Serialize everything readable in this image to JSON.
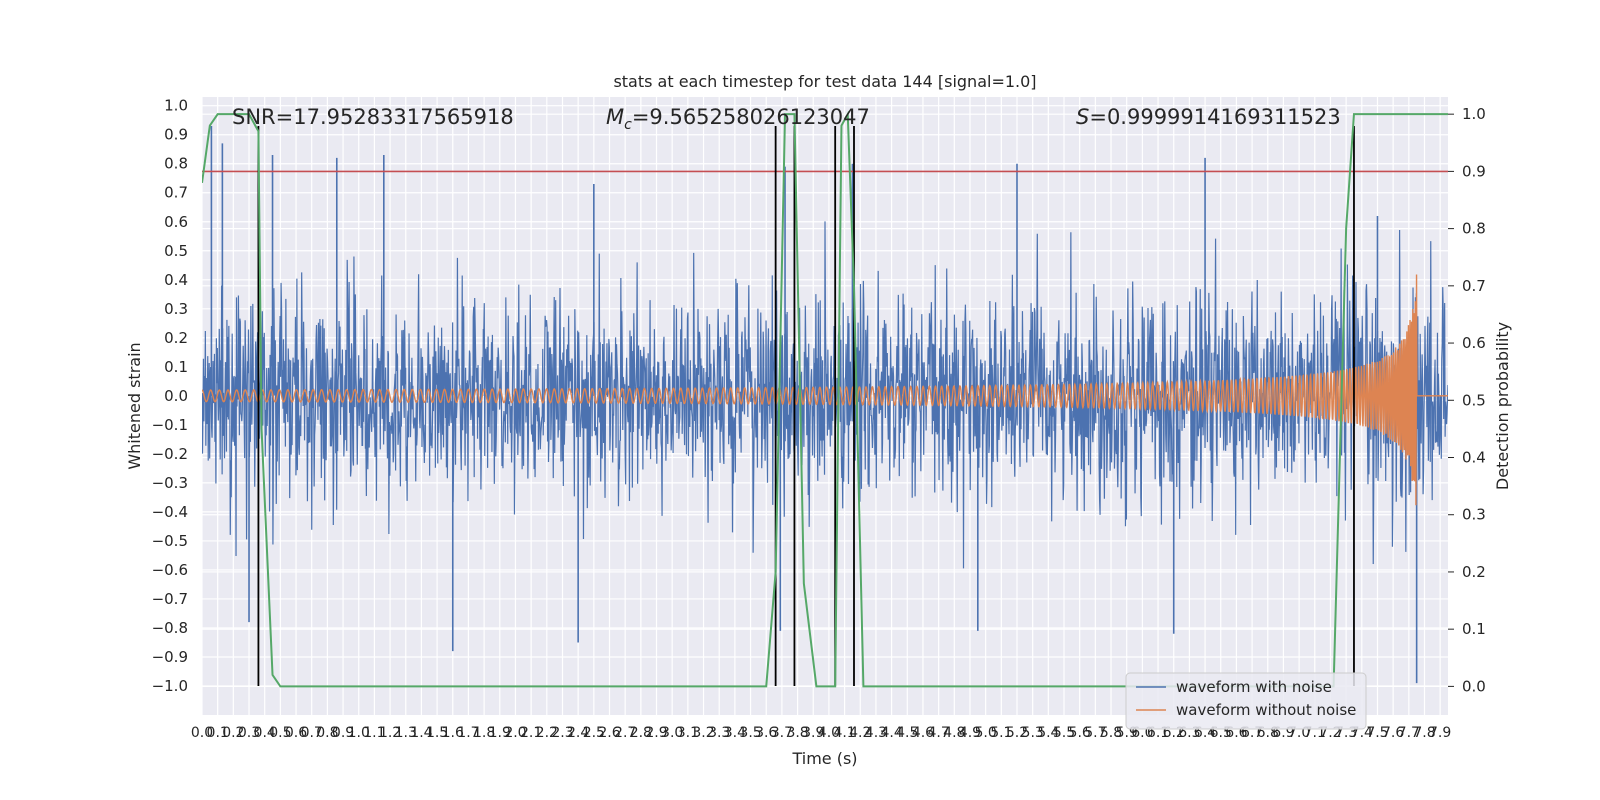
{
  "chart_data": {
    "type": "line",
    "title": "stats at each timestep for test data 144 [signal=1.0]",
    "xlabel": "Time (s)",
    "ylabel": "Whitened strain",
    "ylabel_right": "Detection probability",
    "xlim": [
      0,
      7.95
    ],
    "ylim": [
      -1.1,
      1.03
    ],
    "ylim_right": [
      -0.05,
      1.03
    ],
    "x_ticks": [
      0.0,
      0.1,
      0.2,
      0.3,
      0.4,
      0.5,
      0.6,
      0.7,
      0.8,
      0.9,
      1.0,
      1.1,
      1.2,
      1.3,
      1.4,
      1.5,
      1.6,
      1.7,
      1.8,
      1.9,
      2.0,
      2.1,
      2.2,
      2.3,
      2.4,
      2.5,
      2.6,
      2.7,
      2.8,
      2.9,
      3.0,
      3.1,
      3.2,
      3.3,
      3.4,
      3.5,
      3.6,
      3.7,
      3.8,
      3.9,
      4.0,
      4.1,
      4.2,
      4.3,
      4.4,
      4.5,
      4.6,
      4.7,
      4.8,
      4.9,
      5.0,
      5.1,
      5.2,
      5.3,
      5.4,
      5.5,
      5.6,
      5.7,
      5.8,
      5.9,
      6.0,
      6.1,
      6.2,
      6.3,
      6.4,
      6.5,
      6.6,
      6.7,
      6.8,
      6.9,
      7.0,
      7.1,
      7.2,
      7.3,
      7.4,
      7.5,
      7.6,
      7.7,
      7.8,
      7.9
    ],
    "y_ticks": [
      1.0,
      0.9,
      0.8,
      0.7,
      0.6,
      0.5,
      0.4,
      0.3,
      0.2,
      0.1,
      0.0,
      -0.1,
      -0.2,
      -0.3,
      -0.4,
      -0.5,
      -0.6,
      -0.7,
      -0.8,
      -0.9,
      -1.0
    ],
    "y_tick_labels": [
      "1.0",
      "0.9",
      "0.8",
      "0.7",
      "0.6",
      "0.5",
      "0.4",
      "0.3",
      "0.2",
      "0.1",
      "0.0",
      "−0.1",
      "−0.2",
      "−0.3",
      "−0.4",
      "−0.5",
      "−0.6",
      "−0.7",
      "−0.8",
      "−0.9",
      "−1.0"
    ],
    "y_right_ticks": [
      1.0,
      0.9,
      0.8,
      0.7,
      0.6,
      0.5,
      0.4,
      0.3,
      0.2,
      0.1,
      0.0
    ],
    "y_right_tick_labels": [
      "1.0",
      "0.9",
      "0.8",
      "0.7",
      "0.6",
      "0.5",
      "0.4",
      "0.3",
      "0.2",
      "0.1",
      "0.0"
    ],
    "grid": true,
    "legend_position": "lower-right",
    "annotations": {
      "snr": "SNR=17.95283317565918",
      "mc_symbol": "M",
      "mc_subscript": "c",
      "mc_value": "=9.565258026123047",
      "s_symbol": "S",
      "s_value": "=0.9999914169311523"
    },
    "series": [
      {
        "name": "waveform with noise",
        "color": "#4c72b0",
        "description_of_shape": "dense gaussian-like noise, amplitude roughly ±0.45 with spikes up to ±0.93",
        "noise_amplitude": 0.17,
        "spike_examples": [
          [
            0.06,
            0.93
          ],
          [
            0.13,
            0.87
          ],
          [
            0.3,
            -0.78
          ],
          [
            0.45,
            0.83
          ],
          [
            0.86,
            0.82
          ],
          [
            1.16,
            0.83
          ],
          [
            1.6,
            -0.88
          ],
          [
            2.4,
            -0.85
          ],
          [
            2.5,
            0.73
          ],
          [
            3.72,
            0.79
          ],
          [
            3.69,
            -0.81
          ],
          [
            4.15,
            0.8
          ],
          [
            4.95,
            -0.81
          ],
          [
            5.2,
            0.8
          ],
          [
            6.4,
            0.82
          ],
          [
            6.2,
            -0.82
          ],
          [
            7.75,
            -0.99
          ],
          [
            7.5,
            0.62
          ]
        ]
      },
      {
        "name": "waveform without noise",
        "color": "#dd8452",
        "description_of_shape": "chirp: small sinusoid growing in amplitude and frequency, peaking near t=7.75, then flat",
        "x_start": 0.0,
        "x_merger": 7.75,
        "amplitude_start": 0.02,
        "amplitude_peak": 0.52,
        "frequency_start_hz": 18.0
      }
    ],
    "probability_series": {
      "color": "#55a868",
      "x": [
        0.0,
        0.05,
        0.1,
        0.3,
        0.36,
        0.38,
        0.45,
        0.5,
        3.6,
        3.66,
        3.72,
        3.78,
        3.84,
        3.92,
        4.0,
        4.04,
        4.08,
        4.12,
        4.16,
        4.22,
        4.28,
        7.22,
        7.3,
        7.35,
        7.4,
        7.95
      ],
      "y": [
        0.88,
        0.98,
        1.0,
        1.0,
        0.97,
        0.45,
        0.02,
        0.0,
        0.0,
        0.2,
        1.0,
        1.0,
        0.18,
        0.0,
        0.0,
        0.0,
        0.98,
        1.0,
        0.7,
        0.0,
        0.0,
        0.0,
        0.8,
        1.0,
        1.0,
        1.0
      ]
    },
    "threshold_line": {
      "y_right": 0.9,
      "color": "#c44e52"
    },
    "vertical_lines": {
      "color": "#000000",
      "x": [
        0.36,
        3.66,
        3.78,
        4.04,
        4.16,
        7.35
      ],
      "y_range": [
        -1.0,
        0.93
      ]
    }
  }
}
